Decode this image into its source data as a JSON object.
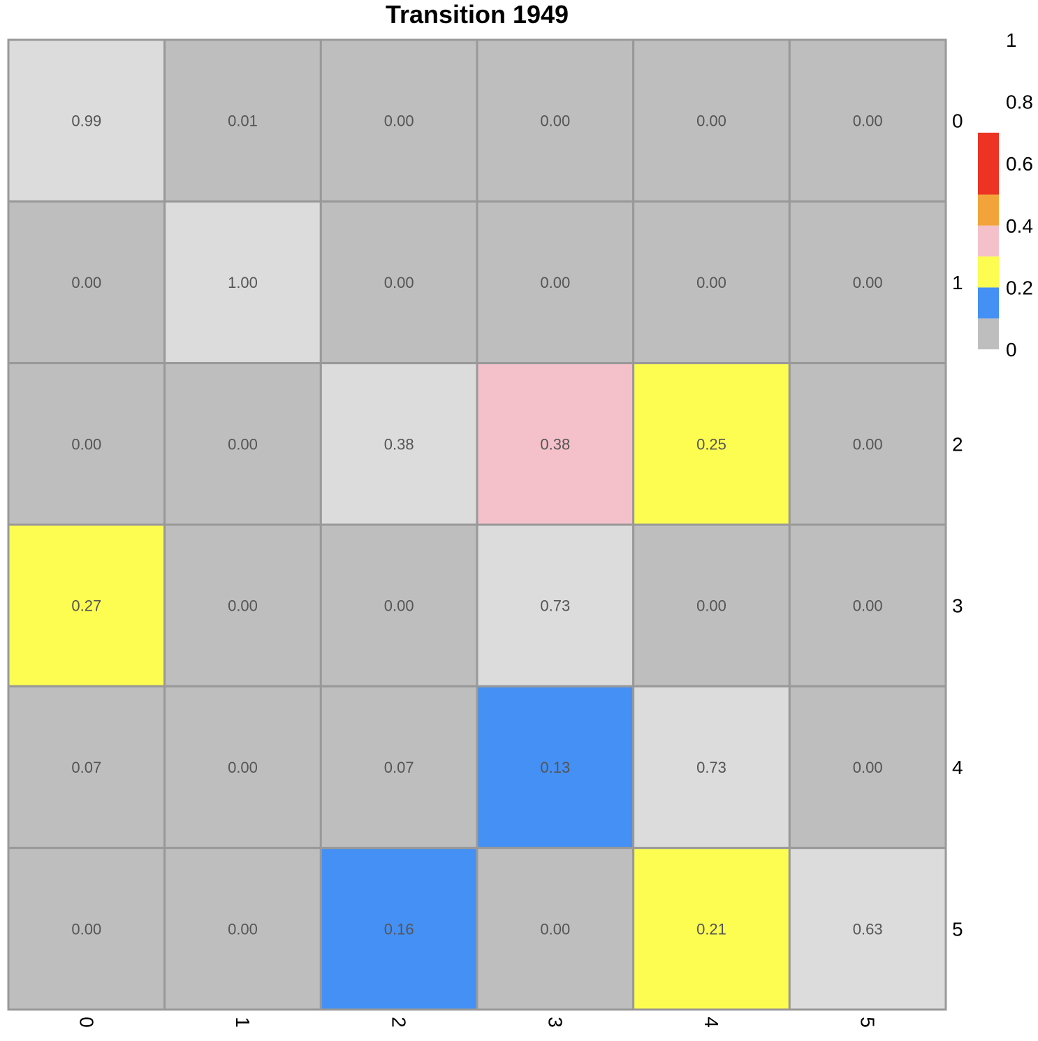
{
  "chart_data": {
    "type": "heatmap",
    "title": "Transition 1949",
    "rows": [
      "0",
      "1",
      "2",
      "3",
      "4",
      "5"
    ],
    "columns": [
      "0",
      "1",
      "2",
      "3",
      "4",
      "5"
    ],
    "values": [
      [
        0.99,
        0.01,
        0.0,
        0.0,
        0.0,
        0.0
      ],
      [
        0.0,
        1.0,
        0.0,
        0.0,
        0.0,
        0.0
      ],
      [
        0.0,
        0.0,
        0.38,
        0.38,
        0.25,
        0.0
      ],
      [
        0.27,
        0.0,
        0.0,
        0.73,
        0.0,
        0.0
      ],
      [
        0.07,
        0.0,
        0.07,
        0.13,
        0.73,
        0.0
      ],
      [
        0.0,
        0.0,
        0.16,
        0.0,
        0.21,
        0.63
      ]
    ],
    "labels": [
      [
        "0.99",
        "0.01",
        "0.00",
        "0.00",
        "0.00",
        "0.00"
      ],
      [
        "0.00",
        "1.00",
        "0.00",
        "0.00",
        "0.00",
        "0.00"
      ],
      [
        "0.00",
        "0.00",
        "0.38",
        "0.38",
        "0.25",
        "0.00"
      ],
      [
        "0.27",
        "0.00",
        "0.00",
        "0.73",
        "0.00",
        "0.00"
      ],
      [
        "0.07",
        "0.00",
        "0.07",
        "0.13",
        "0.73",
        "0.00"
      ],
      [
        "0.00",
        "0.00",
        "0.16",
        "0.00",
        "0.21",
        "0.63"
      ]
    ],
    "diagonal_color": "#dcdcdc",
    "color_bins": [
      {
        "from": 0.0,
        "to": 0.1,
        "color": "#bebebe"
      },
      {
        "from": 0.1,
        "to": 0.2,
        "color": "#4490f4"
      },
      {
        "from": 0.2,
        "to": 0.3,
        "color": "#fdfc51"
      },
      {
        "from": 0.3,
        "to": 0.4,
        "color": "#f4c1ca"
      },
      {
        "from": 0.4,
        "to": 0.5,
        "color": "#f2a43a"
      },
      {
        "from": 0.5,
        "to": 0.7,
        "color": "#ec3324"
      }
    ],
    "legend": {
      "ticks": [
        "1",
        "0.8",
        "0.6",
        "0.4",
        "0.2",
        "0"
      ],
      "tick_values": [
        1,
        0.8,
        0.6,
        0.4,
        0.2,
        0
      ],
      "range": [
        0,
        1
      ],
      "placement": "right"
    },
    "grid_color": "#999999"
  }
}
